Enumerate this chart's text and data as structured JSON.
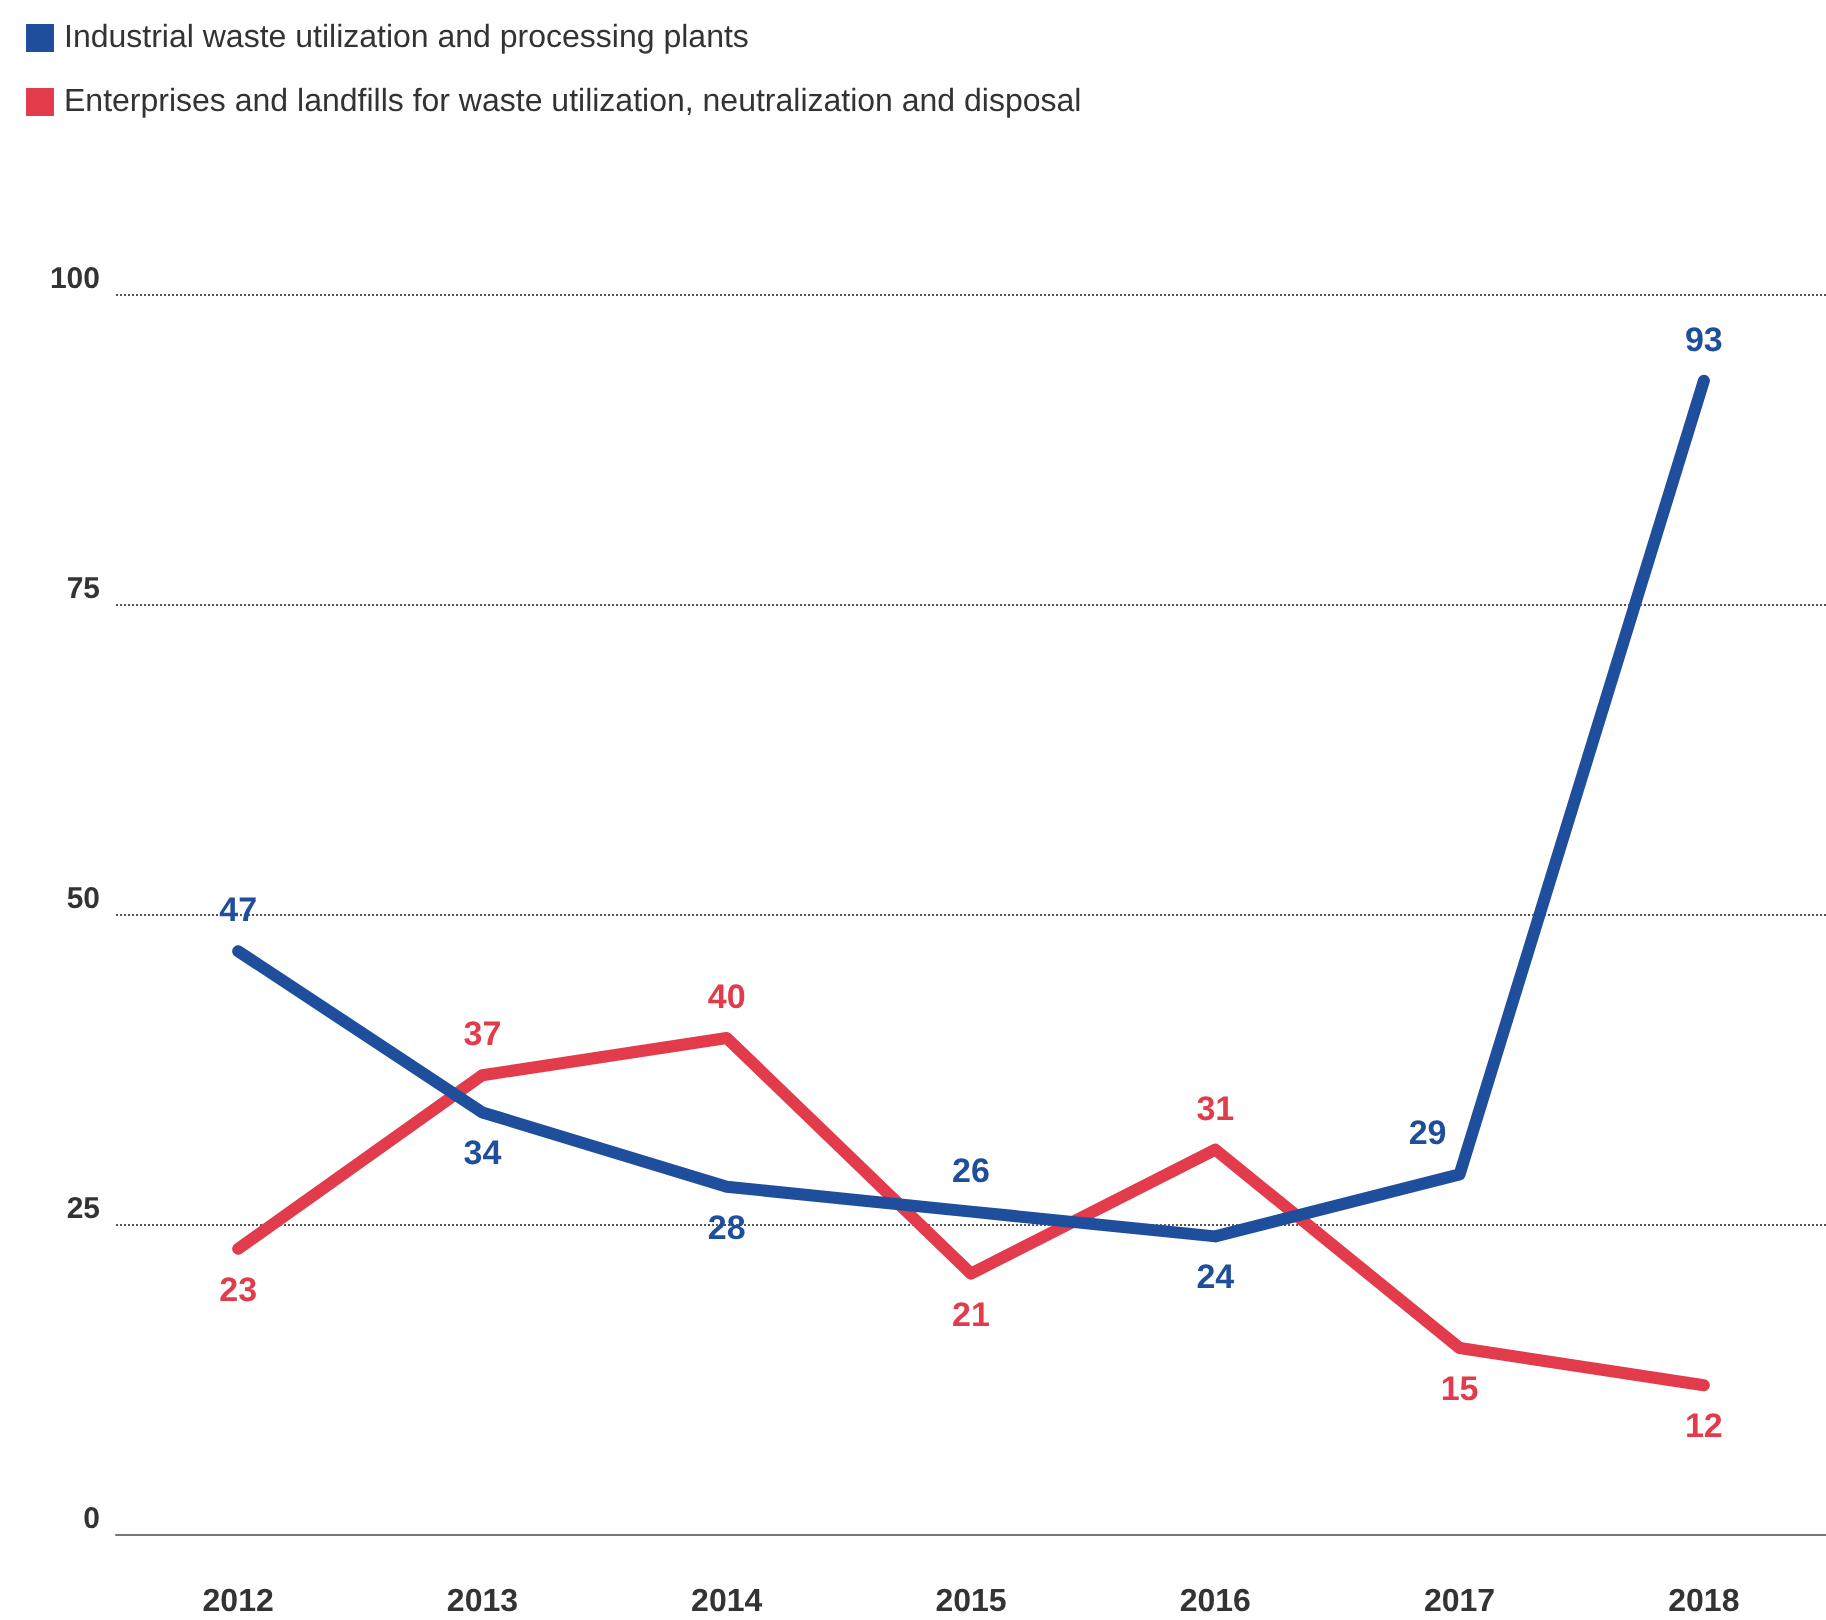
{
  "chart_data": {
    "type": "line",
    "categories": [
      "2012",
      "2013",
      "2014",
      "2015",
      "2016",
      "2017",
      "2018"
    ],
    "series": [
      {
        "name": "Industrial waste utilization and processing plants",
        "color": "#1f4e9c",
        "values": [
          47,
          34,
          28,
          26,
          24,
          29,
          93
        ]
      },
      {
        "name": "Enterprises and landfills for waste utilization, neutralization and disposal",
        "color": "#e23b4b",
        "values": [
          23,
          37,
          40,
          21,
          31,
          15,
          12
        ]
      }
    ],
    "ylim": [
      0,
      100
    ],
    "yticks": [
      0,
      25,
      50,
      75,
      100
    ],
    "grid": "y",
    "line_style": "solid",
    "marker": "none",
    "data_labels": true,
    "legend": "top left"
  }
}
